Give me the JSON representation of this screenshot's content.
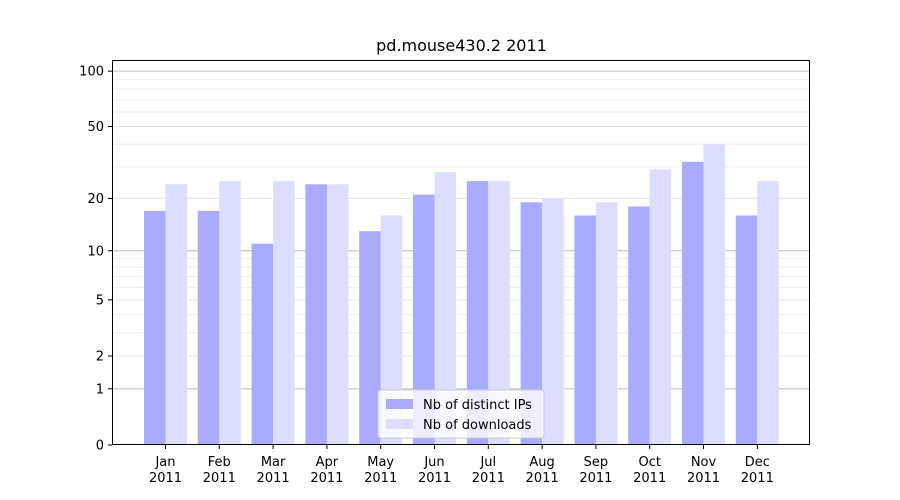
{
  "chart_data": {
    "type": "bar",
    "title": "pd.mouse430.2 2011",
    "xlabel": "",
    "ylabel": "",
    "y_scale": "log(1+y)",
    "ylim": [
      0,
      100
    ],
    "y_ticks": [
      0,
      1,
      2,
      5,
      10,
      20,
      50,
      100
    ],
    "grid": "horizontal",
    "legend_position": "bottom-center",
    "categories": [
      [
        "Jan",
        "2011"
      ],
      [
        "Feb",
        "2011"
      ],
      [
        "Mar",
        "2011"
      ],
      [
        "Apr",
        "2011"
      ],
      [
        "May",
        "2011"
      ],
      [
        "Jun",
        "2011"
      ],
      [
        "Jul",
        "2011"
      ],
      [
        "Aug",
        "2011"
      ],
      [
        "Sep",
        "2011"
      ],
      [
        "Oct",
        "2011"
      ],
      [
        "Nov",
        "2011"
      ],
      [
        "Dec",
        "2011"
      ]
    ],
    "series": [
      {
        "name": "Nb of distinct IPs",
        "color": "#aaaaff",
        "values": [
          17,
          17,
          11,
          24,
          13,
          21,
          25,
          19,
          16,
          18,
          32,
          16
        ]
      },
      {
        "name": "Nb of downloads",
        "color": "#ddddff",
        "values": [
          24,
          25,
          25,
          24,
          16,
          28,
          25,
          20,
          19,
          29,
          40,
          25
        ]
      }
    ]
  }
}
